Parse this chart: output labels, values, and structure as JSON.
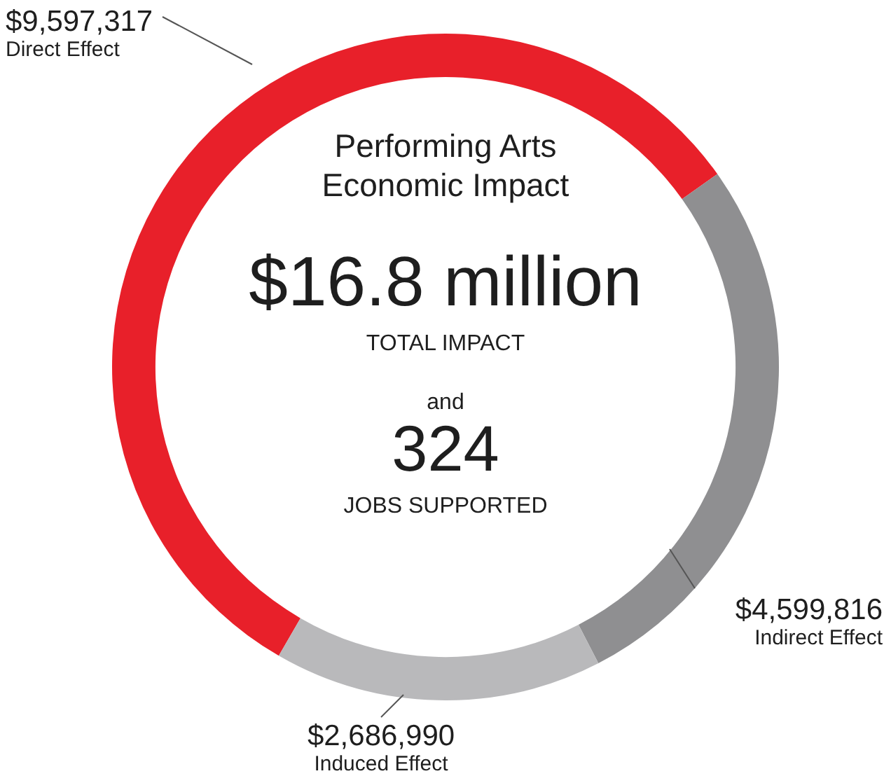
{
  "chart_data": {
    "type": "donut",
    "title": "Performing Arts Economic Impact",
    "categories": [
      "Direct Effect",
      "Indirect Effect",
      "Induced Effect"
    ],
    "values": [
      9597317,
      4599816,
      2686990
    ],
    "value_labels": [
      "$9,597,317",
      "$4,599,816",
      "$2,686,990"
    ],
    "colors": [
      "#e8202a",
      "#8f8f91",
      "#b9b9bb"
    ],
    "annotations": [
      "$16.8 million",
      "TOTAL IMPACT",
      "and",
      "324",
      "JOBS SUPPORTED"
    ],
    "legend": false
  }
}
